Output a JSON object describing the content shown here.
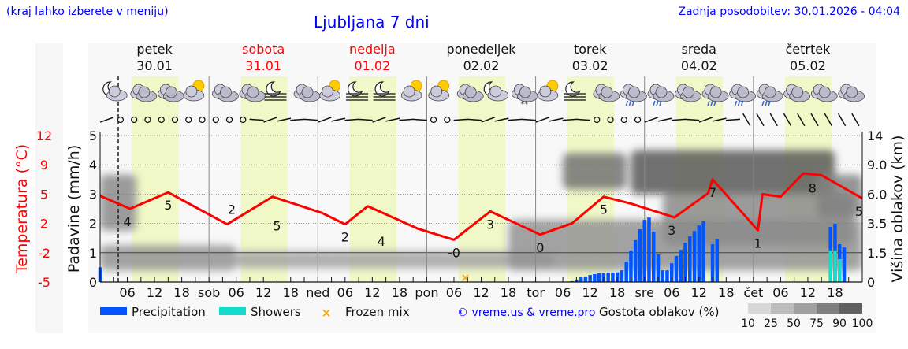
{
  "header": {
    "hint": "(kraj lahko izberete v meniju)",
    "title": "Ljubljana 7 dni",
    "updated": "Zadnja posodobitev: 30.01.2026 - 04:04"
  },
  "colors": {
    "temperature": "#ff0000",
    "precipitation": "#0055ff",
    "showers": "#11ddcc",
    "frozen_mix": "#ffa500",
    "daylight": "#f0f8c8",
    "link": "#0000ff"
  },
  "chart_data": {
    "type": "meteogram",
    "days": [
      {
        "name": "petek",
        "date": "30.01",
        "weekend": false
      },
      {
        "name": "sobota",
        "date": "31.01",
        "weekend": true
      },
      {
        "name": "nedelja",
        "date": "01.02",
        "weekend": true
      },
      {
        "name": "ponedeljek",
        "date": "02.02",
        "weekend": false
      },
      {
        "name": "torek",
        "date": "03.02",
        "weekend": false
      },
      {
        "name": "sreda",
        "date": "04.02",
        "weekend": false
      },
      {
        "name": "četrtek",
        "date": "05.02",
        "weekend": false
      }
    ],
    "day_short": [
      "",
      "sob",
      "ned",
      "pon",
      "tor",
      "sre",
      "čet"
    ],
    "hour_ticks": [
      "06",
      "12",
      "18"
    ],
    "current_time_hour": 4,
    "daylight_hours": [
      7,
      17.3
    ],
    "xlim_hours": [
      0,
      168
    ],
    "left_axis_temp": {
      "label": "Temperatura (°C)",
      "ticks": [
        "12",
        "9",
        "5",
        "2",
        "-2",
        "-5"
      ],
      "ylim": [
        -5,
        12
      ]
    },
    "left_axis_precip": {
      "label": "Padavine (mm/h)",
      "ticks": [
        "5",
        "4",
        "3",
        "2",
        "1",
        "0"
      ],
      "ylim": [
        0,
        5
      ]
    },
    "right_axis_cloud": {
      "label": "Višina oblakov (km)",
      "ticks": [
        "14",
        "9.0",
        "6.0",
        "3.5",
        "1.5",
        "0"
      ]
    },
    "temperature": {
      "hours": [
        0,
        6.6,
        15,
        28,
        38,
        49,
        54,
        59,
        70,
        78,
        86,
        97,
        104,
        111,
        117,
        126.6,
        134,
        135,
        145,
        146,
        150,
        155,
        159,
        168
      ],
      "values": [
        5.0,
        3.5,
        5.4,
        1.7,
        4.9,
        3.0,
        1.7,
        3.8,
        1.2,
        -0.1,
        3.2,
        0.5,
        1.8,
        4.9,
        4.1,
        2.5,
        5.3,
        6.9,
        1.0,
        5.2,
        4.9,
        7.6,
        7.4,
        4.7
      ]
    },
    "temp_labels": [
      {
        "hour": 6,
        "text": "4"
      },
      {
        "hour": 15,
        "text": "5"
      },
      {
        "hour": 29,
        "text": "2"
      },
      {
        "hour": 39,
        "text": "5"
      },
      {
        "hour": 54,
        "text": "2"
      },
      {
        "hour": 62,
        "text": "4"
      },
      {
        "hour": 78,
        "text": "-0"
      },
      {
        "hour": 86,
        "text": "3"
      },
      {
        "hour": 97,
        "text": "0"
      },
      {
        "hour": 111,
        "text": "5"
      },
      {
        "hour": 126,
        "text": "3"
      },
      {
        "hour": 135,
        "text": "7"
      },
      {
        "hour": 145,
        "text": "1"
      },
      {
        "hour": 157,
        "text": "8"
      },
      {
        "hour": 168,
        "text": "5"
      }
    ],
    "precipitation": {
      "start_hour": 104,
      "values": [
        0.03,
        0.08,
        0.16,
        0.19,
        0.24,
        0.27,
        0.3,
        0.3,
        0.32,
        0.32,
        0.33,
        0.4,
        0.7,
        1.07,
        1.43,
        1.8,
        2.12,
        2.2,
        1.72,
        0.94,
        0.4,
        0.4,
        0.64,
        0.89,
        1.1,
        1.34,
        1.56,
        1.74,
        1.93,
        2.07,
        0,
        1.29,
        1.47
      ]
    },
    "precip_extra": [
      {
        "hour": 0,
        "total": 0.5,
        "showers": 0
      },
      {
        "hour": 161,
        "total": 1.88,
        "showers": 1.08
      },
      {
        "hour": 162,
        "total": 1.99,
        "showers": 1.08
      },
      {
        "hour": 163,
        "total": 1.29,
        "showers": 0.78
      },
      {
        "hour": 164,
        "total": 1.18,
        "showers": 0
      }
    ],
    "frozen_mix_hours": [
      80.5
    ],
    "freezing_level_km": 1.5,
    "cloud_layers": [
      {
        "from": 0,
        "to": 30,
        "base": 0.6,
        "top": 2.0,
        "density": 55
      },
      {
        "from": 30,
        "to": 100,
        "base": 0.7,
        "top": 1.6,
        "density": 45
      },
      {
        "from": 0,
        "to": 8,
        "base": 3.0,
        "top": 8.0,
        "density": 60
      },
      {
        "from": 90,
        "to": 168,
        "base": 0.6,
        "top": 3.8,
        "density": 55
      },
      {
        "from": 102,
        "to": 116,
        "base": 6.5,
        "top": 11,
        "density": 75
      },
      {
        "from": 117,
        "to": 162,
        "base": 6.0,
        "top": 11.5,
        "density": 90
      },
      {
        "from": 124,
        "to": 166,
        "base": 2.0,
        "top": 6.0,
        "density": 60
      },
      {
        "from": 158,
        "to": 168,
        "base": 4.0,
        "top": 8.0,
        "density": 65
      }
    ],
    "weather_icons": [
      "cloud-moon",
      "cloud",
      "cloud",
      "sun-cloud",
      "cloud",
      "cloud",
      "moon-fog",
      "cloud",
      "sun-cloud",
      "moon-fog",
      "moon-fog",
      "sun-cloud",
      "sun-cloud",
      "cloud",
      "moon-cloud",
      "snow",
      "sun-cloud",
      "moon-fog",
      "cloud",
      "rain",
      "rain",
      "cloud",
      "rain",
      "rain",
      "rain",
      "cloud",
      "cloud",
      "cloud"
    ],
    "legend": {
      "precipitation": "Precipitation",
      "showers": "Showers",
      "frozen_mix": "Frozen mix",
      "credit": "© vreme.us & vreme.pro",
      "cloud_density_label": "Gostota oblakov (%)",
      "cloud_density_ticks": [
        "10",
        "25",
        "50",
        "75",
        "90",
        "100"
      ]
    }
  }
}
